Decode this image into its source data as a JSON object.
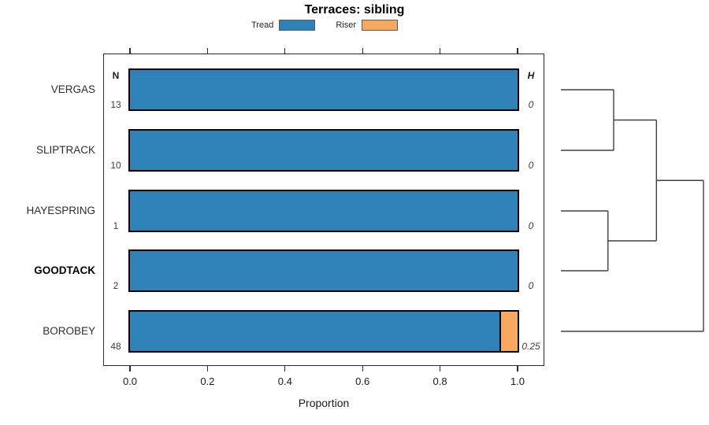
{
  "chart_data": {
    "type": "bar",
    "orientation": "horizontal",
    "stacked": true,
    "title": "Terraces: sibling",
    "xlabel": "Proportion",
    "xlim": [
      0,
      1
    ],
    "xticks": [
      "0.0",
      "0.2",
      "0.4",
      "0.6",
      "0.8",
      "1.0"
    ],
    "grid": false,
    "legend_position": "top-center",
    "legend": [
      {
        "name": "Tread",
        "color": "#2E82B8"
      },
      {
        "name": "Riser",
        "color": "#F9A860"
      }
    ],
    "columns": {
      "n_header": "N",
      "h_header": "H"
    },
    "categories": [
      "VERGAS",
      "SLIPTRACK",
      "HAYESPRING",
      "GOODTACK",
      "BOROBEY"
    ],
    "series": [
      {
        "name": "Tread",
        "values": [
          1.0,
          1.0,
          1.0,
          1.0,
          0.958
        ]
      },
      {
        "name": "Riser",
        "values": [
          0.0,
          0.0,
          0.0,
          0.0,
          0.042
        ]
      }
    ],
    "rows": [
      {
        "label": "VERGAS",
        "n": "13",
        "tread": 1.0,
        "riser": 0.0,
        "h": "0",
        "bold": false
      },
      {
        "label": "SLIPTRACK",
        "n": "10",
        "tread": 1.0,
        "riser": 0.0,
        "h": "0",
        "bold": false
      },
      {
        "label": "HAYESPRING",
        "n": "1",
        "tread": 1.0,
        "riser": 0.0,
        "h": "0",
        "bold": false
      },
      {
        "label": "GOODTACK",
        "n": "2",
        "tread": 1.0,
        "riser": 0.0,
        "h": "0",
        "bold": true
      },
      {
        "label": "BOROBEY",
        "n": "48",
        "tread": 0.958,
        "riser": 0.042,
        "h": "0.25",
        "bold": false
      }
    ],
    "dendrogram": {
      "topology": "((VERGAS,SLIPTRACK),(HAYESPRING,GOODTACK)),BOROBEY",
      "merges": [
        {
          "a": "VERGAS",
          "b": "SLIPTRACK",
          "height": 0.37
        },
        {
          "a": "HAYESPRING",
          "b": "GOODTACK",
          "height": 0.33
        },
        {
          "a": "m0",
          "b": "m1",
          "height": 0.67
        },
        {
          "a": "m2",
          "b": "BOROBEY",
          "height": 1.0
        }
      ]
    }
  }
}
